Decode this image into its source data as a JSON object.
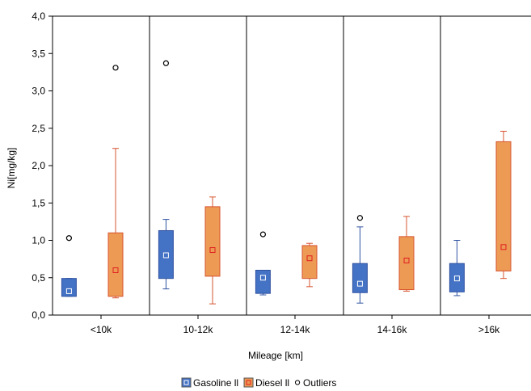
{
  "chart_data": {
    "type": "boxplot",
    "title": "",
    "xlabel": "Mileage [km]",
    "ylabel": "Ni[mg/kg]",
    "ylim": [
      0,
      4
    ],
    "yticks": [
      "0,0",
      "0,5",
      "1,0",
      "1,5",
      "2,0",
      "2,5",
      "3,0",
      "3,5",
      "4,0"
    ],
    "categories": [
      "<10k",
      "10-12k",
      "12-14k",
      "14-16k",
      ">16k"
    ],
    "grid": false,
    "category_separators": true,
    "legend_position": "bottom",
    "legend": [
      {
        "label": "Gasoline ll",
        "marker": "box",
        "color": "#4472c4"
      },
      {
        "label": "Diesel ll",
        "marker": "box",
        "color": "#ed9a55"
      },
      {
        "label": "Outliers",
        "marker": "circle",
        "color": "#000000"
      }
    ],
    "series": [
      {
        "key": "gasoline",
        "fill": "#4472c4",
        "stroke": "#2f52a0",
        "center_marker_fill": "#4472c4",
        "center_marker_stroke": "#ffffff",
        "values": [
          {
            "min": 0.25,
            "q1": 0.25,
            "center": 0.32,
            "q3": 0.49,
            "max": 0.49,
            "outliers": [
              1.03
            ]
          },
          {
            "min": 0.35,
            "q1": 0.49,
            "center": 0.8,
            "q3": 1.13,
            "max": 1.28,
            "outliers": [
              3.37
            ]
          },
          {
            "min": 0.27,
            "q1": 0.29,
            "center": 0.5,
            "q3": 0.6,
            "max": 0.6,
            "outliers": [
              1.08
            ]
          },
          {
            "min": 0.16,
            "q1": 0.3,
            "center": 0.42,
            "q3": 0.69,
            "max": 1.18,
            "outliers": [
              1.3
            ]
          },
          {
            "min": 0.26,
            "q1": 0.31,
            "center": 0.49,
            "q3": 0.69,
            "max": 1.0,
            "outliers": []
          }
        ]
      },
      {
        "key": "diesel",
        "fill": "#ed9a55",
        "stroke": "#d7542f",
        "center_marker_fill": "#ed9a55",
        "center_marker_stroke": "#e02020",
        "values": [
          {
            "min": 0.23,
            "q1": 0.25,
            "center": 0.6,
            "q3": 1.1,
            "max": 2.23,
            "outliers": [
              3.31
            ]
          },
          {
            "min": 0.15,
            "q1": 0.52,
            "center": 0.87,
            "q3": 1.45,
            "max": 1.58,
            "outliers": []
          },
          {
            "min": 0.38,
            "q1": 0.49,
            "center": 0.76,
            "q3": 0.93,
            "max": 0.96,
            "outliers": []
          },
          {
            "min": 0.32,
            "q1": 0.34,
            "center": 0.73,
            "q3": 1.05,
            "max": 1.32,
            "outliers": []
          },
          {
            "min": 0.49,
            "q1": 0.59,
            "center": 0.91,
            "q3": 2.32,
            "max": 2.46,
            "outliers": []
          }
        ]
      }
    ]
  }
}
